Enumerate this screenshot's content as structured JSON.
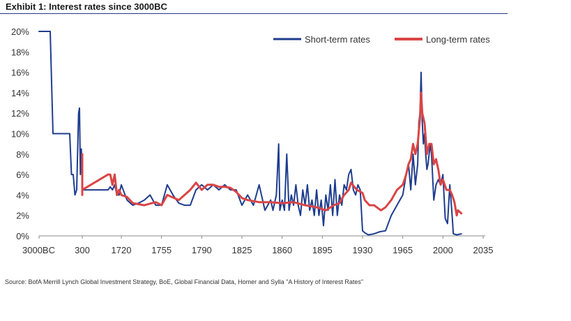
{
  "header": {
    "title": "Exhibit 1: Interest rates since 3000BC"
  },
  "footer": {
    "source": "Source: BofA Merrill Lynch Global Investment Strategy, BoE, Global Financial Data, Homer and Sylla \"A History of Interest Rates\""
  },
  "colors": {
    "short_term": "#1f3d8f",
    "long_term": "#d94545",
    "axis": "#888888",
    "title_rule": "#1f3b7a"
  },
  "chart_data": {
    "type": "line",
    "title": "",
    "xlabel": "",
    "ylabel": "",
    "x_ticks": [
      "3000BC",
      "300",
      "1720",
      "1755",
      "1790",
      "1825",
      "1860",
      "1895",
      "1930",
      "1965",
      "2000",
      "2035"
    ],
    "y_ticks": [
      "0%",
      "2%",
      "4%",
      "6%",
      "8%",
      "10%",
      "12%",
      "14%",
      "16%",
      "18%",
      "20%"
    ],
    "ylim": [
      0,
      20
    ],
    "grid": false,
    "legend_position": "top-right",
    "note": "x axis is non-linear: 3000BC and 300 are compressed; from 1720 to 2035 the scale is linear.",
    "series": [
      {
        "name": "Short-term rates",
        "color": "#1f3d8f",
        "points": [
          [
            "3000BC",
            20
          ],
          [
            "-2000",
            20
          ],
          [
            "-1800",
            10
          ],
          [
            "-1000",
            10
          ],
          [
            "-400",
            10
          ],
          [
            "-300",
            6
          ],
          [
            "-200",
            6
          ],
          [
            "-100",
            4
          ],
          [
            "0",
            4.5
          ],
          [
            "100",
            12
          ],
          [
            "150",
            12.5
          ],
          [
            "200",
            6
          ],
          [
            "250",
            8.5
          ],
          [
            "300",
            4.5
          ],
          [
            1600,
            4.5
          ],
          [
            1620,
            4.8
          ],
          [
            1640,
            4.5
          ],
          [
            1660,
            5
          ],
          [
            1680,
            4
          ],
          [
            1700,
            4
          ],
          [
            1720,
            5
          ],
          [
            1725,
            3.5
          ],
          [
            1730,
            3
          ],
          [
            1735,
            3.2
          ],
          [
            1740,
            3.5
          ],
          [
            1745,
            4
          ],
          [
            1750,
            3
          ],
          [
            1755,
            3
          ],
          [
            1760,
            5
          ],
          [
            1765,
            4
          ],
          [
            1770,
            3.2
          ],
          [
            1775,
            3
          ],
          [
            1780,
            3
          ],
          [
            1785,
            4.5
          ],
          [
            1790,
            5
          ],
          [
            1795,
            4.5
          ],
          [
            1800,
            5
          ],
          [
            1805,
            4.5
          ],
          [
            1810,
            5
          ],
          [
            1815,
            4.5
          ],
          [
            1820,
            4.5
          ],
          [
            1825,
            3
          ],
          [
            1830,
            4
          ],
          [
            1835,
            3
          ],
          [
            1840,
            5
          ],
          [
            1845,
            2.5
          ],
          [
            1850,
            3.5
          ],
          [
            1852,
            2.5
          ],
          [
            1855,
            4
          ],
          [
            1857,
            9
          ],
          [
            1858,
            2.5
          ],
          [
            1860,
            3.5
          ],
          [
            1862,
            2.5
          ],
          [
            1864,
            8
          ],
          [
            1866,
            2.5
          ],
          [
            1868,
            4
          ],
          [
            1870,
            3
          ],
          [
            1872,
            5
          ],
          [
            1874,
            3
          ],
          [
            1876,
            2
          ],
          [
            1878,
            4.5
          ],
          [
            1880,
            3
          ],
          [
            1882,
            5
          ],
          [
            1884,
            2.5
          ],
          [
            1886,
            3.5
          ],
          [
            1888,
            2
          ],
          [
            1890,
            4.5
          ],
          [
            1892,
            2
          ],
          [
            1894,
            3.5
          ],
          [
            1896,
            1
          ],
          [
            1898,
            4
          ],
          [
            1900,
            2.5
          ],
          [
            1902,
            5
          ],
          [
            1904,
            2
          ],
          [
            1906,
            5.5
          ],
          [
            1908,
            2
          ],
          [
            1910,
            4
          ],
          [
            1912,
            3
          ],
          [
            1914,
            5
          ],
          [
            1916,
            4.5
          ],
          [
            1918,
            6
          ],
          [
            1920,
            6.5
          ],
          [
            1922,
            4.5
          ],
          [
            1924,
            4
          ],
          [
            1926,
            5
          ],
          [
            1928,
            4.5
          ],
          [
            1930,
            0.5
          ],
          [
            1932,
            0.3
          ],
          [
            1935,
            0.1
          ],
          [
            1940,
            0.2
          ],
          [
            1945,
            0.4
          ],
          [
            1950,
            0.5
          ],
          [
            1955,
            2
          ],
          [
            1960,
            3
          ],
          [
            1965,
            4
          ],
          [
            1968,
            6
          ],
          [
            1970,
            7
          ],
          [
            1972,
            4.5
          ],
          [
            1974,
            8
          ],
          [
            1976,
            5
          ],
          [
            1978,
            7
          ],
          [
            1979,
            11
          ],
          [
            1980,
            12
          ],
          [
            1981,
            16
          ],
          [
            1982,
            11
          ],
          [
            1983,
            9
          ],
          [
            1984,
            10
          ],
          [
            1985,
            8
          ],
          [
            1986,
            6.5
          ],
          [
            1987,
            7
          ],
          [
            1989,
            9
          ],
          [
            1990,
            8
          ],
          [
            1992,
            3.5
          ],
          [
            1994,
            5
          ],
          [
            1996,
            5.5
          ],
          [
            1998,
            5
          ],
          [
            2000,
            6
          ],
          [
            2002,
            1.7
          ],
          [
            2004,
            1.2
          ],
          [
            2006,
            5
          ],
          [
            2008,
            2
          ],
          [
            2009,
            0.2
          ],
          [
            2012,
            0.1
          ],
          [
            2016,
            0.2
          ]
        ]
      },
      {
        "name": "Long-term rates",
        "color": "#d94545",
        "points": [
          [
            "300",
            8
          ],
          [
            "300",
            4
          ],
          [
            "300",
            6
          ],
          [
            "300",
            8
          ],
          [
            "300",
            4.5
          ],
          [
            1600,
            6
          ],
          [
            1620,
            6
          ],
          [
            1640,
            5
          ],
          [
            1660,
            6
          ],
          [
            1680,
            4
          ],
          [
            1700,
            4.5
          ],
          [
            1720,
            4
          ],
          [
            1725,
            3.8
          ],
          [
            1730,
            3.2
          ],
          [
            1740,
            3
          ],
          [
            1750,
            3.3
          ],
          [
            1755,
            3
          ],
          [
            1760,
            4
          ],
          [
            1770,
            3.5
          ],
          [
            1780,
            4.5
          ],
          [
            1785,
            5.2
          ],
          [
            1790,
            4.5
          ],
          [
            1795,
            5
          ],
          [
            1800,
            5
          ],
          [
            1805,
            4.8
          ],
          [
            1810,
            4.8
          ],
          [
            1815,
            4.7
          ],
          [
            1820,
            4.3
          ],
          [
            1825,
            3.7
          ],
          [
            1830,
            3.5
          ],
          [
            1840,
            3.3
          ],
          [
            1850,
            3.3
          ],
          [
            1860,
            3.2
          ],
          [
            1870,
            3.3
          ],
          [
            1880,
            3
          ],
          [
            1890,
            2.8
          ],
          [
            1898,
            2.5
          ],
          [
            1905,
            3
          ],
          [
            1910,
            3.2
          ],
          [
            1914,
            4
          ],
          [
            1918,
            4.5
          ],
          [
            1920,
            5.2
          ],
          [
            1925,
            4.5
          ],
          [
            1930,
            4.2
          ],
          [
            1932,
            3.5
          ],
          [
            1936,
            3
          ],
          [
            1940,
            3
          ],
          [
            1946,
            2.5
          ],
          [
            1950,
            2.8
          ],
          [
            1955,
            3.5
          ],
          [
            1960,
            4.5
          ],
          [
            1965,
            5
          ],
          [
            1968,
            6
          ],
          [
            1970,
            7
          ],
          [
            1972,
            7.5
          ],
          [
            1974,
            9
          ],
          [
            1976,
            8
          ],
          [
            1978,
            9
          ],
          [
            1980,
            11.5
          ],
          [
            1981,
            14
          ],
          [
            1982,
            12
          ],
          [
            1984,
            11
          ],
          [
            1986,
            8
          ],
          [
            1988,
            9
          ],
          [
            1990,
            9
          ],
          [
            1992,
            7
          ],
          [
            1994,
            7.5
          ],
          [
            1996,
            6.5
          ],
          [
            1998,
            5
          ],
          [
            2000,
            5.5
          ],
          [
            2003,
            4.5
          ],
          [
            2006,
            4.5
          ],
          [
            2008,
            4
          ],
          [
            2010,
            3.3
          ],
          [
            2012,
            2
          ],
          [
            2013,
            2.5
          ],
          [
            2016,
            2.2
          ]
        ]
      }
    ]
  }
}
